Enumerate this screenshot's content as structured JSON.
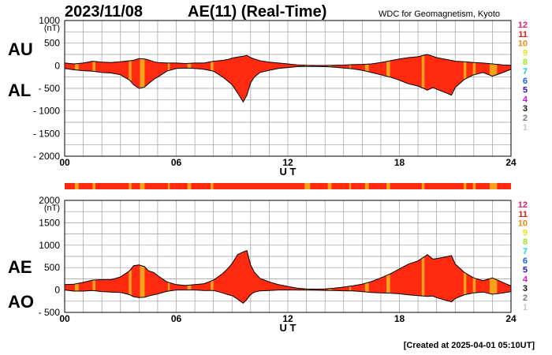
{
  "header": {
    "date": "2023/11/08",
    "title": "AE(11) (Real-Time)",
    "source": "WDC for Geomagnetism, Kyoto"
  },
  "footer": {
    "created": "[Created at 2025-04-01 05:10UT]"
  },
  "colors": {
    "fill": "#ff2a10",
    "highlight": "#f7a21a",
    "grid": "#9c9c9c",
    "bar": "#ff2a10"
  },
  "station_legend": [
    {
      "label": "12",
      "color": "#e0206e"
    },
    {
      "label": "11",
      "color": "#e81a1a"
    },
    {
      "label": "10",
      "color": "#f08a10"
    },
    {
      "label": "9",
      "color": "#e8e010"
    },
    {
      "label": "8",
      "color": "#9ce61a"
    },
    {
      "label": "7",
      "color": "#1ad2d2"
    },
    {
      "label": "6",
      "color": "#1a62e6"
    },
    {
      "label": "5",
      "color": "#3214b4"
    },
    {
      "label": "4",
      "color": "#d21ad2"
    },
    {
      "label": "3",
      "color": "#101010"
    },
    {
      "label": "2",
      "color": "#787878"
    },
    {
      "label": "1",
      "color": "#c8c8c8"
    }
  ],
  "chart_data": [
    {
      "type": "area",
      "panel": "AU/AL",
      "series_labels": [
        "AU",
        "AL"
      ],
      "unit": "(nT)",
      "xlabel": "U T",
      "xlim": [
        0,
        24
      ],
      "ylim": [
        -2000,
        1000
      ],
      "xticks": [
        0,
        6,
        12,
        18,
        24
      ],
      "xtick_labels": [
        "00",
        "06",
        "12",
        "18",
        "24"
      ],
      "yticks": [
        1000,
        500,
        0,
        -500,
        -1000,
        -1500,
        -2000
      ],
      "ytick_labels": [
        "1000",
        "500",
        "0",
        "- 500",
        "- 1000",
        "- 1500",
        "- 2000"
      ],
      "grid": true,
      "ut": [
        0,
        0.5,
        1,
        1.5,
        2,
        2.5,
        3,
        3.5,
        3.7,
        4,
        4.3,
        4.5,
        4.8,
        5,
        5.5,
        6,
        6.5,
        7,
        7.5,
        8,
        8.5,
        8.8,
        9,
        9.3,
        9.6,
        9.8,
        10,
        10.2,
        10.5,
        11,
        11.5,
        12,
        12.5,
        13,
        13.5,
        14,
        14.5,
        15,
        15.5,
        16,
        16.5,
        17,
        17.5,
        18,
        18.5,
        19,
        19.3,
        19.5,
        19.8,
        20,
        20.5,
        20.8,
        21,
        21.5,
        22,
        22.5,
        23,
        23.5,
        24
      ],
      "au": [
        60,
        40,
        60,
        100,
        80,
        70,
        90,
        110,
        120,
        160,
        150,
        130,
        90,
        70,
        60,
        60,
        50,
        60,
        60,
        100,
        120,
        140,
        170,
        190,
        210,
        230,
        180,
        150,
        110,
        80,
        60,
        40,
        20,
        10,
        5,
        5,
        10,
        15,
        25,
        30,
        40,
        70,
        110,
        150,
        180,
        200,
        230,
        250,
        210,
        180,
        140,
        120,
        100,
        90,
        70,
        60,
        40,
        20,
        10
      ],
      "al": [
        -60,
        -90,
        -110,
        -120,
        -150,
        -160,
        -200,
        -320,
        -420,
        -500,
        -470,
        -400,
        -300,
        -250,
        -120,
        -60,
        -50,
        -60,
        -80,
        -120,
        -250,
        -350,
        -420,
        -600,
        -800,
        -650,
        -380,
        -250,
        -150,
        -100,
        -60,
        -40,
        -20,
        -15,
        -15,
        -20,
        -30,
        -50,
        -70,
        -100,
        -150,
        -200,
        -250,
        -320,
        -400,
        -450,
        -500,
        -540,
        -480,
        -520,
        -600,
        -650,
        -480,
        -300,
        -200,
        -150,
        -230,
        -160,
        -80
      ]
    },
    {
      "type": "area",
      "panel": "AE/AO",
      "series_labels": [
        "AE",
        "AO"
      ],
      "unit": "(nT)",
      "xlabel": "U T",
      "xlim": [
        0,
        24
      ],
      "ylim": [
        -500,
        2000
      ],
      "xticks": [
        0,
        6,
        12,
        18,
        24
      ],
      "xtick_labels": [
        "00",
        "06",
        "12",
        "18",
        "24"
      ],
      "yticks": [
        2000,
        1500,
        1000,
        500,
        0,
        -500
      ],
      "ytick_labels": [
        "2000",
        "1500",
        "1000",
        "500",
        "0",
        "- 500"
      ],
      "grid": true,
      "ut": [
        0,
        0.5,
        1,
        1.5,
        2,
        2.5,
        3,
        3.5,
        3.7,
        4,
        4.3,
        4.5,
        4.8,
        5,
        5.5,
        6,
        6.5,
        7,
        7.5,
        8,
        8.5,
        8.8,
        9,
        9.3,
        9.6,
        9.8,
        10,
        10.2,
        10.5,
        11,
        11.5,
        12,
        12.5,
        13,
        13.5,
        14,
        14.5,
        15,
        15.5,
        16,
        16.5,
        17,
        17.5,
        18,
        18.5,
        19,
        19.3,
        19.5,
        19.8,
        20,
        20.5,
        20.8,
        21,
        21.5,
        22,
        22.5,
        23,
        23.5,
        24
      ],
      "ae": [
        120,
        130,
        170,
        220,
        230,
        230,
        290,
        430,
        540,
        560,
        520,
        430,
        390,
        320,
        180,
        120,
        100,
        120,
        140,
        220,
        370,
        490,
        590,
        790,
        850,
        880,
        560,
        400,
        260,
        180,
        120,
        80,
        40,
        25,
        20,
        25,
        40,
        65,
        95,
        130,
        190,
        270,
        360,
        470,
        580,
        650,
        730,
        790,
        690,
        700,
        740,
        770,
        580,
        390,
        270,
        210,
        270,
        180,
        90
      ],
      "ao": [
        0,
        -25,
        -25,
        -10,
        -35,
        -45,
        -55,
        -105,
        -150,
        -170,
        -160,
        -135,
        -105,
        -90,
        -30,
        0,
        0,
        0,
        -10,
        -10,
        -65,
        -105,
        -125,
        -205,
        -295,
        -210,
        -100,
        -50,
        -20,
        -10,
        0,
        0,
        0,
        -3,
        -5,
        -8,
        -10,
        -18,
        -22,
        -35,
        -55,
        -65,
        -70,
        -85,
        -110,
        -125,
        -135,
        -145,
        -135,
        -170,
        -230,
        -265,
        -190,
        -105,
        -65,
        -45,
        -95,
        -70,
        -35
      ]
    }
  ],
  "ut_marks": {
    "xlabel": "U T",
    "tick_labels": [
      "00",
      "06",
      "12",
      "18",
      "24"
    ]
  },
  "highlight_intervals_ut": [
    [
      0.55,
      0.75
    ],
    [
      1.5,
      1.65
    ],
    [
      3.45,
      3.6
    ],
    [
      4.05,
      4.3
    ],
    [
      5.55,
      5.65
    ],
    [
      6.6,
      6.8
    ],
    [
      7.85,
      8.0
    ],
    [
      12.9,
      13.2
    ],
    [
      14.15,
      14.35
    ],
    [
      15.3,
      15.4
    ],
    [
      16.15,
      16.35
    ],
    [
      17.3,
      17.5
    ],
    [
      19.2,
      19.35
    ],
    [
      21.45,
      21.6
    ],
    [
      21.95,
      22.1
    ],
    [
      22.85,
      23.25
    ]
  ]
}
